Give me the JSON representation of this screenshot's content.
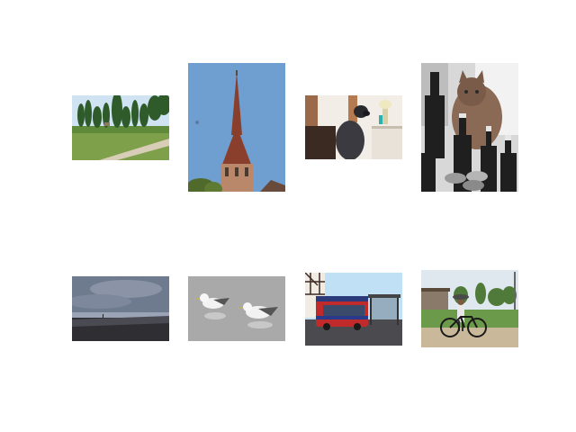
{
  "gallery": {
    "images": [
      {
        "subject": "park-lawn"
      },
      {
        "subject": "church-spire"
      },
      {
        "subject": "dog-at-desk"
      },
      {
        "subject": "cat-with-bottles"
      },
      {
        "subject": "beach-dusk"
      },
      {
        "subject": "seagulls-on-water"
      },
      {
        "subject": "red-bus-at-stop"
      },
      {
        "subject": "person-with-bicycle"
      }
    ]
  }
}
